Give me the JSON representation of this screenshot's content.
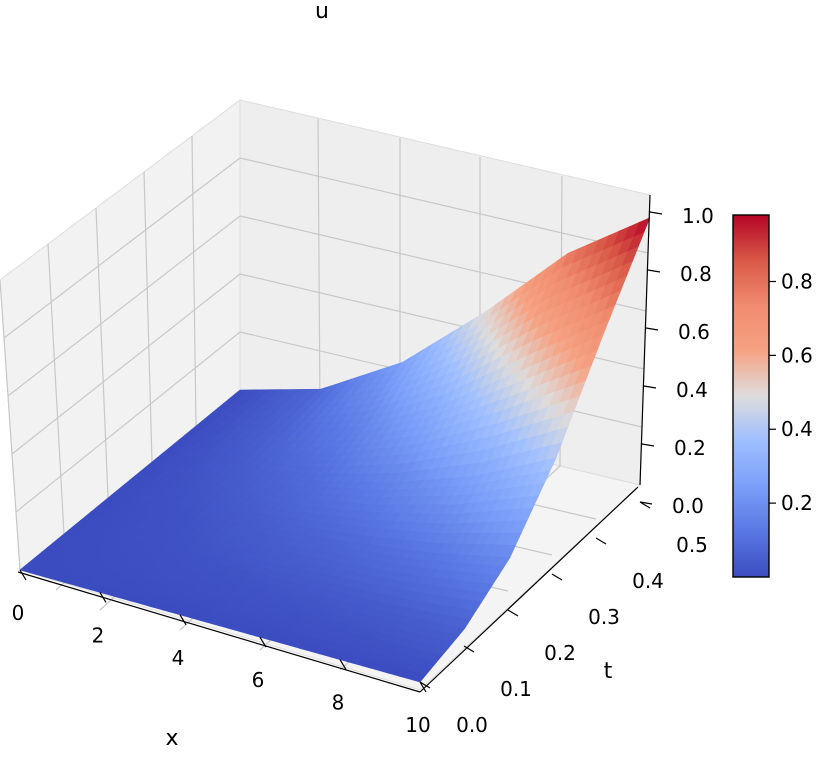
{
  "chart_data": {
    "type": "surface",
    "title": "u",
    "xlabel": "x",
    "ylabel": "t",
    "zlabel": "",
    "xlim": [
      0,
      10
    ],
    "ylim": [
      0,
      0.5
    ],
    "zlim": [
      0,
      1.0
    ],
    "x_ticks": [
      "0",
      "2",
      "4",
      "6",
      "8",
      "10"
    ],
    "y_ticks": [
      "0.0",
      "0.1",
      "0.2",
      "0.3",
      "0.4",
      "0.5"
    ],
    "z_ticks": [
      "0.0",
      "0.2",
      "0.4",
      "0.6",
      "0.8",
      "1.0"
    ],
    "colormap": "coolwarm",
    "grid": true,
    "surface_grid": {
      "x": [
        0,
        2,
        4,
        6,
        8,
        10
      ],
      "t": [
        0.0,
        0.1,
        0.2,
        0.3,
        0.4,
        0.5
      ],
      "u_rows": [
        [
          0.0,
          0.0,
          0.0,
          0.0,
          0.0,
          0.0
        ],
        [
          0.0,
          0.01,
          0.02,
          0.04,
          0.06,
          0.08
        ],
        [
          0.0,
          0.02,
          0.05,
          0.09,
          0.15,
          0.25
        ],
        [
          0.0,
          0.03,
          0.08,
          0.16,
          0.3,
          0.5
        ],
        [
          0.0,
          0.04,
          0.12,
          0.26,
          0.5,
          0.78
        ],
        [
          0.0,
          0.06,
          0.18,
          0.4,
          0.7,
          0.98
        ]
      ]
    },
    "colorbar": {
      "ticks": [
        "0.2",
        "0.4",
        "0.6",
        "0.8"
      ],
      "range": [
        0.0,
        0.98
      ]
    }
  }
}
